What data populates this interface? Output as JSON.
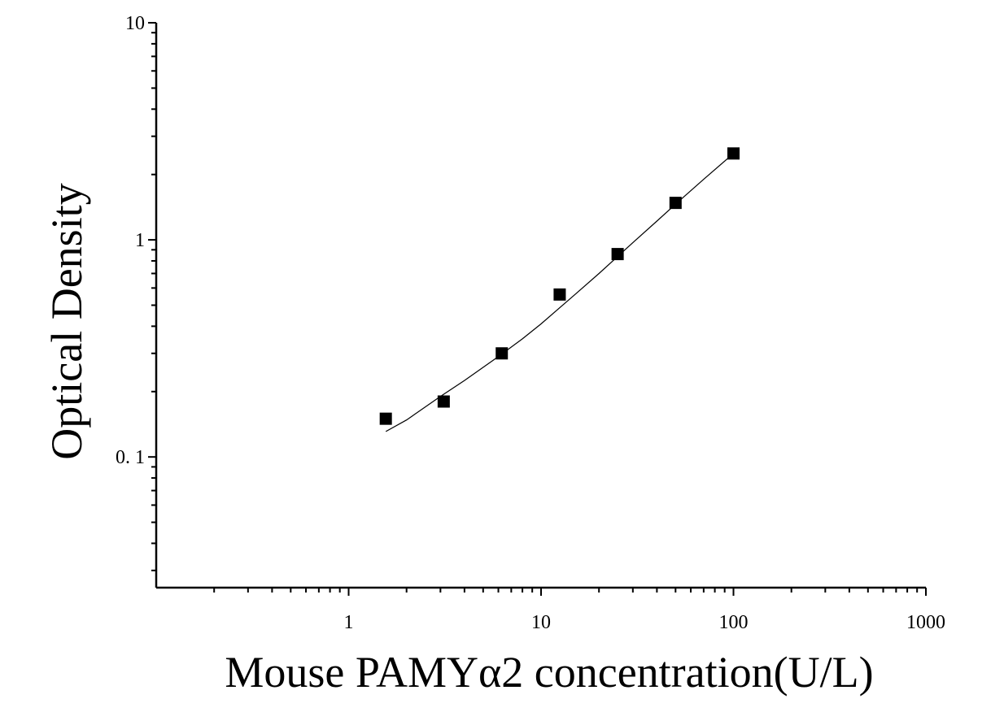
{
  "chart_data": {
    "type": "scatter",
    "xlabel": "Mouse PAMYα2 concentration(U/L)",
    "ylabel": "Optical Density",
    "xscale": "log",
    "yscale": "log",
    "xlim": [
      0.1,
      1000
    ],
    "ylim": [
      0.025,
      10
    ],
    "x_ticks": [
      1,
      10,
      100,
      1000
    ],
    "x_tick_labels": [
      "1",
      "10",
      "100",
      "1000"
    ],
    "y_ticks": [
      0.1,
      1,
      10
    ],
    "y_tick_labels": [
      "0. 1",
      "1",
      "10"
    ],
    "grid": false,
    "marker": "square",
    "series": [
      {
        "x": [
          1.56,
          3.12,
          6.25,
          12.5,
          25,
          50,
          100
        ],
        "y": [
          0.15,
          0.18,
          0.3,
          0.56,
          0.86,
          1.48,
          2.5
        ]
      }
    ],
    "fit_curve": {
      "x_range": [
        1.56,
        100
      ],
      "points": [
        [
          1.56,
          0.131
        ],
        [
          2,
          0.148
        ],
        [
          3,
          0.19
        ],
        [
          4,
          0.225
        ],
        [
          6,
          0.29
        ],
        [
          8,
          0.35
        ],
        [
          10,
          0.41
        ],
        [
          15,
          0.56
        ],
        [
          20,
          0.7
        ],
        [
          30,
          0.97
        ],
        [
          40,
          1.22
        ],
        [
          50,
          1.46
        ],
        [
          70,
          1.9
        ],
        [
          100,
          2.5
        ]
      ]
    }
  }
}
